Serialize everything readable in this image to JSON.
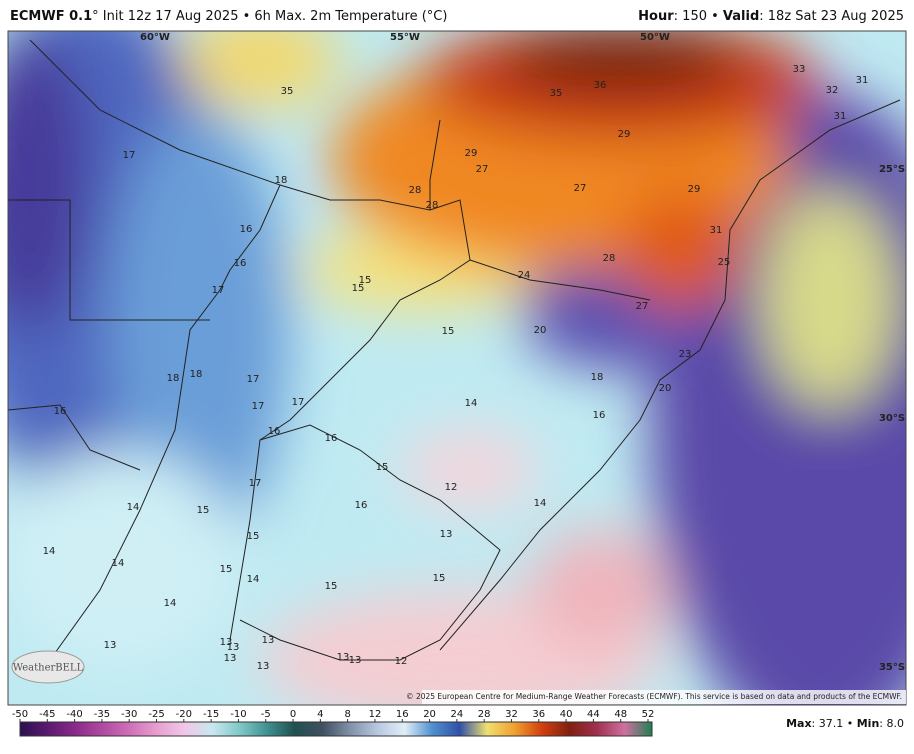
{
  "header": {
    "model": "ECMWF 0.1",
    "title": "° Init 12z 17 Aug 2025 • 6h Max. 2m Temperature (°C)",
    "hour_label": "Hour",
    "hour": ": 150 • ",
    "valid_label": "Valid",
    "valid": ": 18z Sat 23 Aug 2025"
  },
  "map": {
    "lon_labels": [
      "60°W",
      "55°W",
      "50°W"
    ],
    "lat_labels": [
      "25°S",
      "30°S",
      "35°S"
    ],
    "values": [
      35,
      35,
      36,
      33,
      32,
      31,
      31,
      29,
      29,
      27,
      17,
      18,
      28,
      28,
      27,
      29,
      16,
      31,
      16,
      28,
      25,
      24,
      15,
      15,
      17,
      27,
      15,
      20,
      23,
      18,
      18,
      17,
      18,
      20,
      17,
      17,
      14,
      16,
      16,
      16,
      16,
      15,
      17,
      12,
      14,
      15,
      16,
      14,
      13,
      15,
      14,
      14,
      15,
      14,
      15,
      15,
      14,
      13,
      13,
      13,
      13,
      13,
      13,
      13,
      12,
      13
    ]
  },
  "logo": "WeatherBELL",
  "copyright": "© 2025 European Centre for Medium-Range Weather Forecasts (ECMWF). This service is based on data and products of the ECMWF.",
  "colorbar": {
    "ticks": [
      -50,
      -45,
      -40,
      -35,
      -30,
      -25,
      -20,
      -15,
      -10,
      -5,
      0,
      4,
      8,
      12,
      16,
      20,
      24,
      28,
      32,
      36,
      40,
      44,
      48,
      52
    ]
  },
  "footer": {
    "max_label": "Max",
    "max": ": 37.1 • ",
    "min_label": "Min",
    "min": ": 8.0"
  }
}
